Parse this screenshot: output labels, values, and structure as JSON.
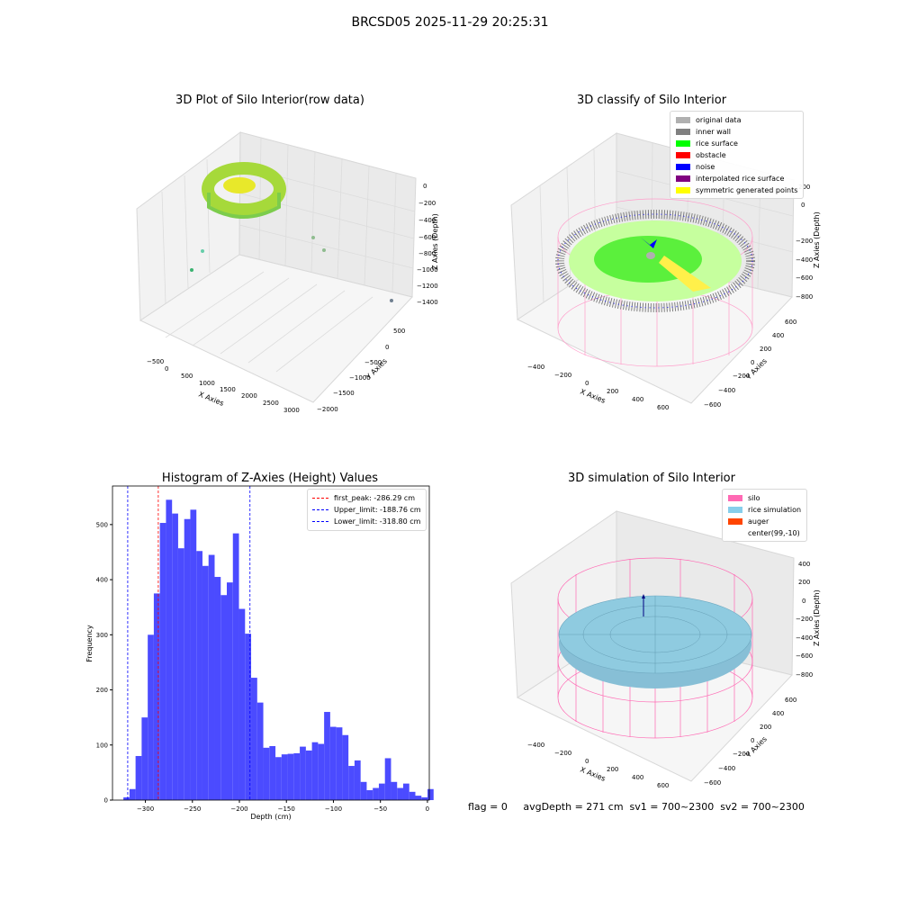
{
  "suptitle": "BRCSD05 2025-11-29 20:25:31",
  "footer": "flag = 0     avgDepth = 271 cm  sv1 = 700~2300  sv2 = 700~2300",
  "colors": {
    "silo": "#ff69b4",
    "rice": "#87ceeb",
    "auger": "#ff4500",
    "hist_bar": "#4b4bff",
    "inner_wall": "#808080",
    "rice_surface": "#00ff00",
    "obstacle": "#ff0000",
    "noise": "#0000ff",
    "interpolated": "#800080",
    "symmetric": "#ffff00",
    "original": "#b0b0b0"
  },
  "panels": {
    "raw": {
      "title": "3D Plot of Silo Interior(row data)",
      "xlabel": "X Axies",
      "ylabel": "Y Axies",
      "zlabel": "Z Axies (Depth)",
      "xticks": [
        "−500",
        "0",
        "500",
        "1000",
        "1500",
        "2000",
        "2500",
        "3000"
      ],
      "yticks": [
        "500",
        "0",
        "−500",
        "−1000",
        "−1500",
        "−2000"
      ],
      "zticks": [
        "0",
        "−200",
        "−400",
        "−600",
        "−800",
        "−1000",
        "−1200",
        "−1400"
      ]
    },
    "classify": {
      "title": "3D classify of Silo Interior",
      "xlabel": "X Axies",
      "ylabel": "Y Axies",
      "zlabel": "Z Axies (Depth)",
      "xticks": [
        "−400",
        "−200",
        "0",
        "200",
        "400",
        "600"
      ],
      "yticks": [
        "600",
        "400",
        "200",
        "0",
        "−200",
        "−400",
        "−600"
      ],
      "zticks": [
        "200",
        "0",
        "−200",
        "−400",
        "−600",
        "−800"
      ],
      "legend": [
        {
          "label": "original data",
          "color": "#b0b0b0"
        },
        {
          "label": "inner wall",
          "color": "#808080"
        },
        {
          "label": "rice surface",
          "color": "#00ff00"
        },
        {
          "label": "obstacle",
          "color": "#ff0000"
        },
        {
          "label": "noise",
          "color": "#0000ff"
        },
        {
          "label": "interpolated rice surface",
          "color": "#800080"
        },
        {
          "label": "symmetric generated points",
          "color": "#ffff00"
        }
      ]
    },
    "simulation": {
      "title": "3D simulation of Silo Interior",
      "xlabel": "X Axies",
      "ylabel": "Y Axies",
      "zlabel": "Z Axies (Depth)",
      "xticks": [
        "−400",
        "−200",
        "0",
        "200",
        "400",
        "600"
      ],
      "yticks": [
        "600",
        "400",
        "200",
        "0",
        "−200",
        "−400",
        "−600"
      ],
      "zticks": [
        "400",
        "200",
        "0",
        "−200",
        "−400",
        "−600",
        "−800"
      ],
      "legend": [
        {
          "label": "silo",
          "color": "#ff69b4"
        },
        {
          "label": "rice simulation",
          "color": "#87ceeb"
        },
        {
          "label": "auger",
          "color": "#ff4500"
        },
        {
          "label": "center(99,-10)",
          "color": "#ffffff"
        }
      ]
    }
  },
  "chart_data": [
    {
      "type": "bar",
      "title": "Histogram of Z-Axies (Height) Values",
      "xlabel": "Depth (cm)",
      "ylabel": "Frequency",
      "xlim": [
        -335,
        2
      ],
      "ylim": [
        0,
        570
      ],
      "xticks": [
        -300,
        -250,
        -200,
        -150,
        -100,
        -50,
        0
      ],
      "xtick_labels": [
        "−300",
        "−250",
        "−200",
        "−150",
        "−100",
        "−50",
        "0"
      ],
      "yticks": [
        0,
        100,
        200,
        300,
        400,
        500
      ],
      "bin_edges_start": -323.4,
      "bin_width": 6.47,
      "values": [
        5,
        20,
        80,
        150,
        300,
        375,
        503,
        545,
        520,
        457,
        510,
        527,
        452,
        425,
        445,
        405,
        372,
        395,
        484,
        347,
        302,
        222,
        177,
        95,
        98,
        78,
        83,
        84,
        85,
        97,
        90,
        105,
        102,
        160,
        133,
        132,
        118,
        62,
        72,
        33,
        18,
        22,
        30,
        76,
        33,
        22,
        30,
        15,
        8,
        5,
        20
      ],
      "vlines": [
        {
          "label": "first_peak: -286.29 cm",
          "x": -286.29,
          "color": "#ff0000"
        },
        {
          "label": "Upper_limit: -188.76 cm",
          "x": -188.76,
          "color": "#0000ff"
        },
        {
          "label": "Lower_limit: -318.80 cm",
          "x": -318.8,
          "color": "#0000ff"
        }
      ]
    }
  ]
}
